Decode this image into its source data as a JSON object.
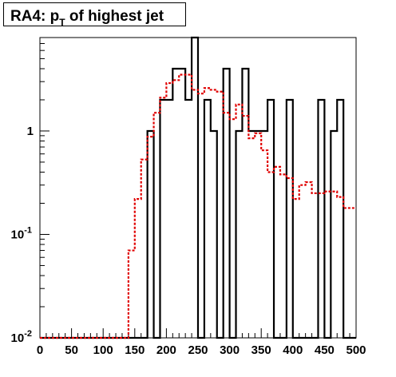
{
  "chart_data": {
    "type": "histogram",
    "title": {
      "prefix": "RA4: p",
      "subscript": "T",
      "suffix": " of highest jet"
    },
    "xlabel": "",
    "ylabel": "",
    "xlim": [
      0,
      500
    ],
    "ylim": [
      0.01,
      8
    ],
    "yscale": "log",
    "grid": false,
    "legend": "none",
    "x_tick_labels": [
      "0",
      "50",
      "100",
      "150",
      "200",
      "250",
      "300",
      "350",
      "400",
      "450",
      "500"
    ],
    "y_tick_labels": [
      {
        "value": 1,
        "base": "1",
        "exp": ""
      },
      {
        "value": 0.1,
        "base": "10",
        "exp": "-1"
      },
      {
        "value": 0.01,
        "base": "10",
        "exp": "-2"
      }
    ],
    "bin_edges": [
      0,
      10,
      20,
      30,
      40,
      50,
      60,
      70,
      80,
      90,
      100,
      110,
      120,
      130,
      140,
      150,
      160,
      170,
      180,
      190,
      200,
      210,
      220,
      230,
      240,
      250,
      260,
      270,
      280,
      290,
      300,
      310,
      320,
      330,
      340,
      350,
      360,
      370,
      380,
      390,
      400,
      410,
      420,
      430,
      440,
      450,
      460,
      470,
      480,
      490,
      500
    ],
    "series": [
      {
        "color": "#000000",
        "style": "solid",
        "values": [
          0.01,
          0.01,
          0.01,
          0.01,
          0.01,
          0.01,
          0.01,
          0.01,
          0.01,
          0.01,
          0.01,
          0.01,
          0.01,
          0.01,
          0.01,
          0.01,
          0.01,
          1,
          0.01,
          2,
          2,
          4,
          4,
          2,
          8,
          0.01,
          2,
          1,
          0.01,
          4,
          0.01,
          1,
          4,
          1,
          1,
          1,
          2,
          0.01,
          0.01,
          2,
          0.01,
          0.01,
          0.01,
          0.01,
          2,
          0.01,
          1,
          2,
          0.01,
          0.01
        ]
      },
      {
        "color": "#e00000",
        "style": "dashed",
        "values": [
          0.01,
          0.01,
          0.01,
          0.01,
          0.01,
          0.01,
          0.01,
          0.01,
          0.01,
          0.01,
          0.01,
          0.01,
          0.01,
          0.01,
          0.07,
          0.22,
          0.53,
          0.88,
          1.5,
          2.1,
          2.9,
          3.1,
          3.5,
          3.5,
          2.5,
          2.3,
          2.6,
          2.5,
          2.4,
          1.5,
          1.3,
          1.8,
          1.4,
          0.85,
          0.95,
          0.65,
          0.4,
          0.45,
          0.38,
          0.35,
          0.22,
          0.3,
          0.32,
          0.25,
          0.25,
          0.26,
          0.26,
          0.23,
          0.18,
          0.18
        ]
      }
    ]
  }
}
